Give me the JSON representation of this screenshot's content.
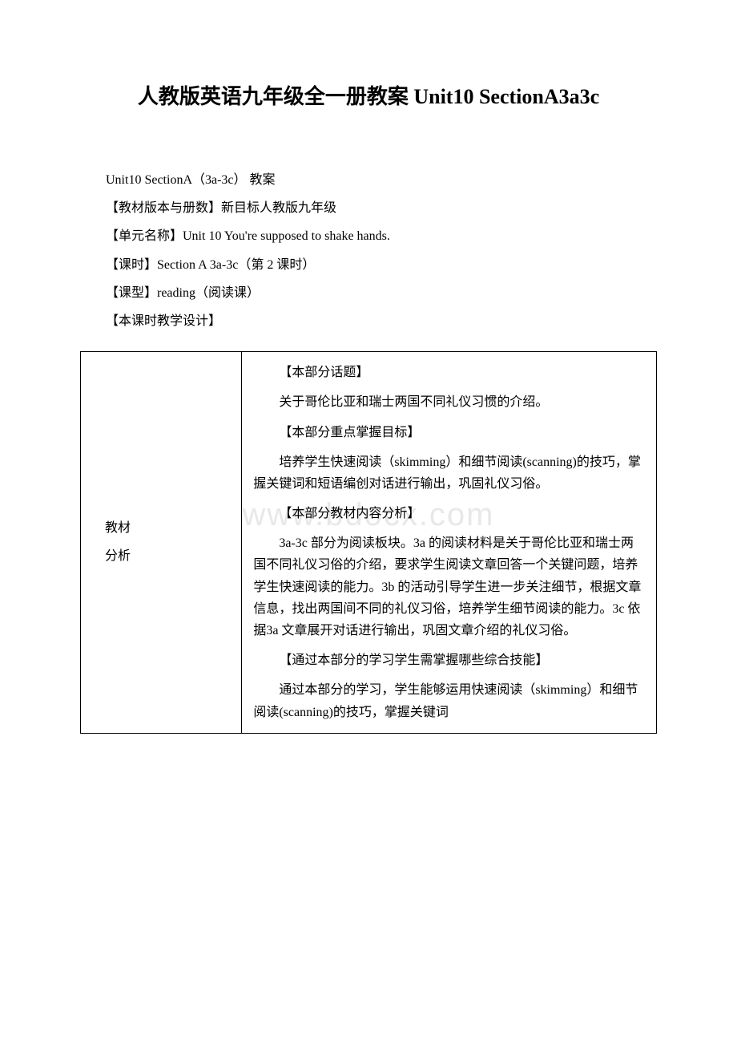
{
  "title": "人教版英语九年级全一册教案 Unit10 SectionA3a3c",
  "meta": {
    "line1": "Unit10 SectionA（3a-3c） 教案",
    "line2": "【教材版本与册数】新目标人教版九年级",
    "line3": "【单元名称】Unit 10 You're supposed to shake hands.",
    "line4": "【课时】Section A 3a-3c（第 2 课时）",
    "line5": "【课型】reading（阅读课）",
    "line6": "【本课时教学设计】"
  },
  "watermark": "www.bdocx.com",
  "table": {
    "left": {
      "l1": "教材",
      "l2": "分析"
    },
    "right": {
      "p1": "【本部分话题】",
      "p2": "关于哥伦比亚和瑞士两国不同礼仪习惯的介绍。",
      "p3": "【本部分重点掌握目标】",
      "p4": "培养学生快速阅读（skimming）和细节阅读(scanning)的技巧，掌握关键词和短语编创对话进行输出，巩固礼仪习俗。",
      "p5": "【本部分教材内容分析】",
      "p6": "3a-3c 部分为阅读板块。3a 的阅读材料是关于哥伦比亚和瑞士两国不同礼仪习俗的介绍，要求学生阅读文章回答一个关键问题，培养学生快速阅读的能力。3b 的活动引导学生进一步关注细节，根据文章信息，找出两国间不同的礼仪习俗，培养学生细节阅读的能力。3c 依据3a 文章展开对话进行输出，巩固文章介绍的礼仪习俗。",
      "p7": "【通过本部分的学习学生需掌握哪些综合技能】",
      "p8": "通过本部分的学习，学生能够运用快速阅读（skimming）和细节阅读(scanning)的技巧，掌握关键词"
    }
  }
}
